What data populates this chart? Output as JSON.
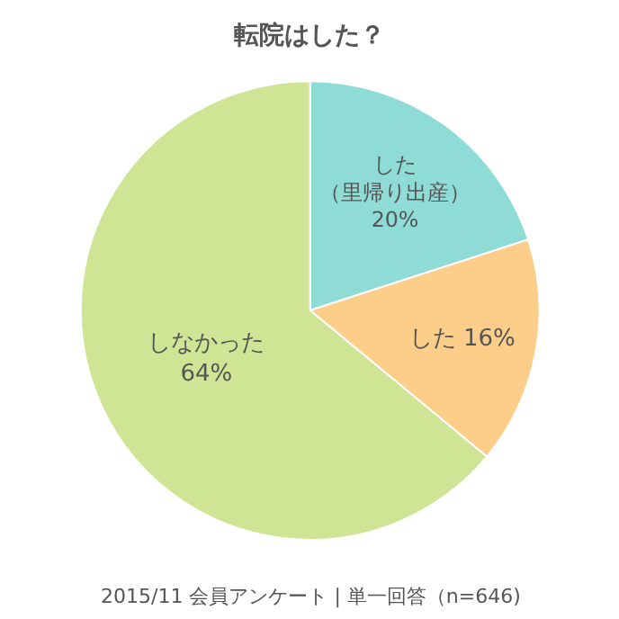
{
  "chart_data": {
    "type": "pie",
    "title": "転院はした？",
    "categories": [
      "した（里帰り出産）",
      "した",
      "しなかった"
    ],
    "values": [
      20,
      16,
      64
    ],
    "value_labels": [
      "20%",
      "16%",
      "64%"
    ],
    "colors": [
      "#8edcd5",
      "#fdcd8a",
      "#cfe494"
    ],
    "annotations": [
      "2015/11 会員アンケート | 単一回答（n=646)"
    ],
    "legend": false
  }
}
